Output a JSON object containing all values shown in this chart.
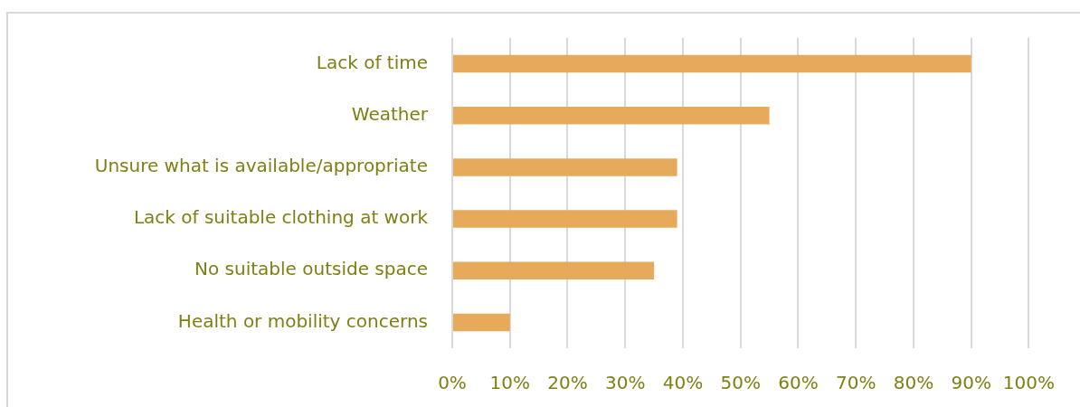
{
  "chart_data": {
    "type": "bar",
    "orientation": "horizontal",
    "categories": [
      "Lack of time",
      "Weather",
      "Unsure what is available/appropriate",
      "Lack of suitable clothing at work",
      "No suitable outside space",
      "Health or mobility concerns"
    ],
    "values": [
      90,
      55,
      39,
      39,
      35,
      10
    ],
    "color": "#e6aa5a",
    "xlim": [
      0,
      100
    ],
    "xticks": [
      {
        "value": 0,
        "label": "0%"
      },
      {
        "value": 10,
        "label": "10%"
      },
      {
        "value": 20,
        "label": "20%"
      },
      {
        "value": 30,
        "label": "30%"
      },
      {
        "value": 40,
        "label": "40%"
      },
      {
        "value": 50,
        "label": "50%"
      },
      {
        "value": 60,
        "label": "60%"
      },
      {
        "value": 70,
        "label": "70%"
      },
      {
        "value": 80,
        "label": "80%"
      },
      {
        "value": 90,
        "label": "90%"
      },
      {
        "value": 100,
        "label": "100%"
      }
    ],
    "grid": "x"
  }
}
